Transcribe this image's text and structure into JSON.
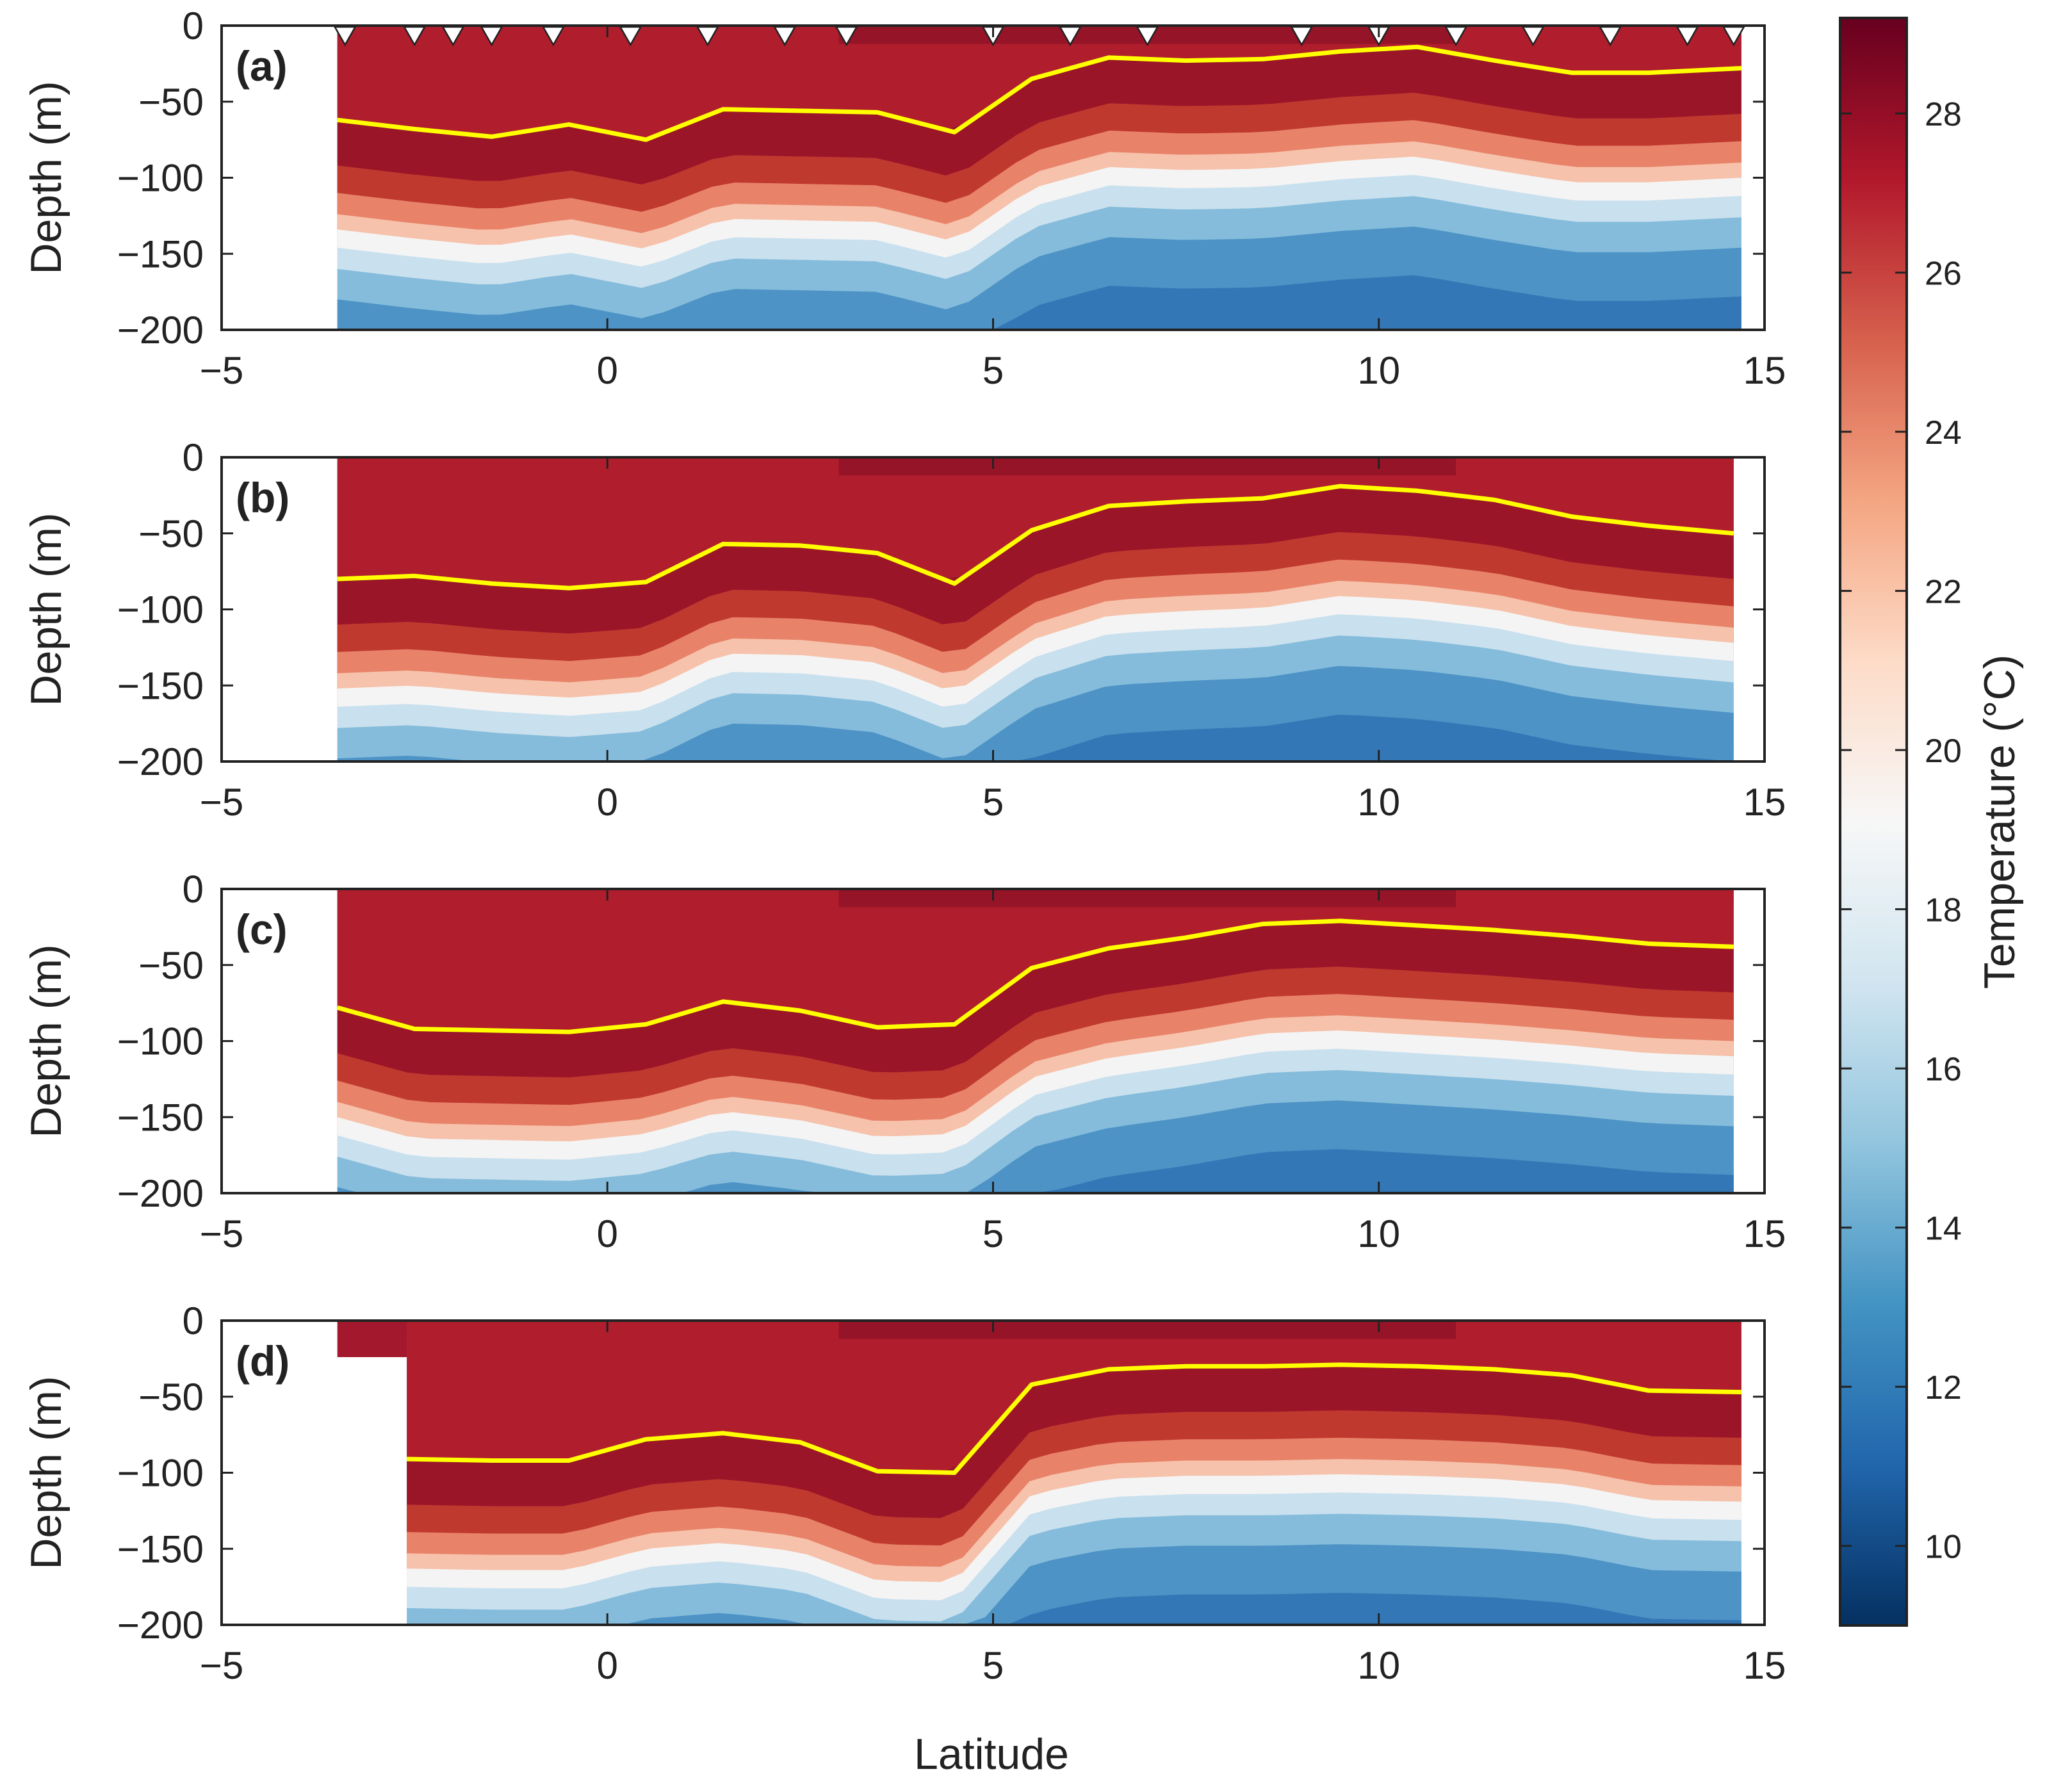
{
  "chart_data": {
    "type": "heatmap",
    "description_type": "temperature depth-latitude sections with mixed-layer depth line",
    "xlabel": "Latitude",
    "ylabel": "Depth (m)",
    "xlim": [
      -5,
      15
    ],
    "ylim": [
      -200,
      0
    ],
    "xticks": [
      "−5",
      "0",
      "5",
      "10",
      "15"
    ],
    "yticks": [
      "0",
      "−50",
      "−100",
      "−150",
      "−200"
    ],
    "colorbar": {
      "label": "Temperature (°C)",
      "range": [
        9,
        29.2
      ],
      "ticks": [
        "10",
        "12",
        "14",
        "16",
        "18",
        "20",
        "22",
        "24",
        "26",
        "28"
      ],
      "colormap": "RdBu_r",
      "colors": [
        "#053061",
        "#2166ac",
        "#4393c3",
        "#92c5de",
        "#d1e5f0",
        "#f7f7f7",
        "#fddbc7",
        "#f4a582",
        "#d6604d",
        "#b2182b",
        "#67001f"
      ]
    },
    "line_color": "#ffff00",
    "station_marker_color": "#ffffff",
    "panels": [
      {
        "label": "(a)",
        "data_xrange": [
          -3.5,
          14.7
        ],
        "stations": [
          -3.4,
          -2.5,
          -2.0,
          -1.5,
          -0.7,
          0.3,
          1.3,
          2.3,
          3.1,
          5.0,
          6.0,
          7.0,
          9.0,
          10.0,
          11.0,
          12.0,
          13.0,
          14.0,
          14.6
        ],
        "mld": {
          "x": [
            -3.5,
            -2.5,
            -1.5,
            -0.5,
            0.5,
            1.5,
            2.5,
            3.5,
            4.5,
            5.5,
            6.5,
            7.5,
            8.5,
            9.5,
            10.5,
            11.5,
            12.5,
            13.5,
            14.7
          ],
          "y": [
            -62,
            -68,
            -73,
            -65,
            -75,
            -55,
            -56,
            -57,
            -70,
            -35,
            -21,
            -23,
            -22,
            -17,
            -14,
            -23,
            -31,
            -31,
            -28
          ]
        }
      },
      {
        "label": "(b)",
        "data_xrange": [
          -3.5,
          14.6
        ],
        "stations": [],
        "mld": {
          "x": [
            -3.5,
            -2.5,
            -1.5,
            -0.5,
            0.5,
            1.5,
            2.5,
            3.5,
            4.5,
            5.5,
            6.5,
            7.5,
            8.5,
            9.5,
            10.5,
            11.5,
            12.5,
            13.5,
            14.6
          ],
          "y": [
            -80,
            -78,
            -83,
            -86,
            -82,
            -57,
            -58,
            -63,
            -83,
            -48,
            -32,
            -29,
            -27,
            -19,
            -22,
            -28,
            -39,
            -45,
            -50
          ]
        }
      },
      {
        "label": "(c)",
        "data_xrange": [
          -3.5,
          14.6
        ],
        "stations": [],
        "mld": {
          "x": [
            -3.5,
            -2.5,
            -1.5,
            -0.5,
            0.5,
            1.5,
            2.5,
            3.5,
            4.5,
            5.5,
            6.5,
            7.5,
            8.5,
            9.5,
            10.5,
            11.5,
            12.5,
            13.5,
            14.6
          ],
          "y": [
            -78,
            -92,
            -93,
            -94,
            -89,
            -74,
            -80,
            -91,
            -89,
            -52,
            -39,
            -32,
            -23,
            -21,
            -24,
            -27,
            -31,
            -36,
            -38
          ]
        }
      },
      {
        "label": "(d)",
        "data_xrange": [
          -2.6,
          14.7
        ],
        "stations": [],
        "mld": {
          "x": [
            -2.6,
            -1.5,
            -0.5,
            0.5,
            1.5,
            2.5,
            3.5,
            4.5,
            5.5,
            6.5,
            7.5,
            8.5,
            9.5,
            10.5,
            11.5,
            12.5,
            13.5,
            14.7
          ],
          "y": [
            -91,
            -92,
            -92,
            -78,
            -74,
            -80,
            -99,
            -100,
            -42,
            -32,
            -30,
            -30,
            -29,
            -30,
            -32,
            -36,
            -46,
            -47
          ]
        }
      }
    ]
  }
}
